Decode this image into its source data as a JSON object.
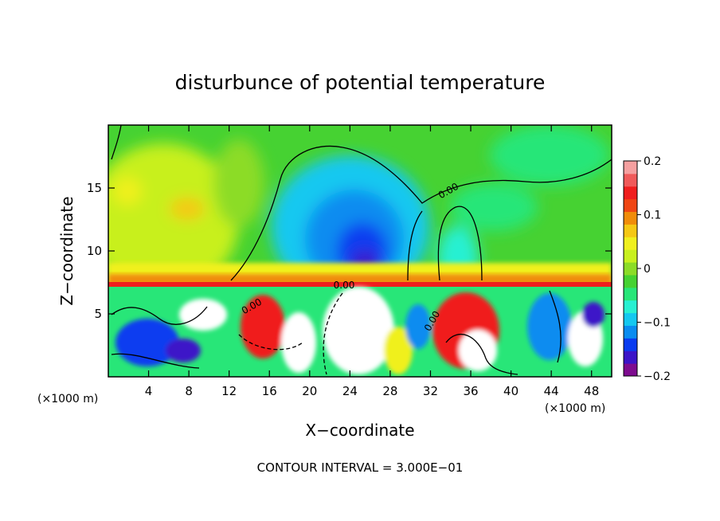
{
  "chart_data": {
    "type": "heatmap",
    "title": "disturbunce of potential temperature",
    "xlabel": "X−coordinate",
    "ylabel": "Z−coordinate",
    "x_unit": "(×1000 m)",
    "xlim": [
      0,
      50
    ],
    "ylim": [
      0,
      20
    ],
    "x_ticks": [
      4,
      8,
      12,
      16,
      20,
      24,
      28,
      32,
      36,
      40,
      44,
      48
    ],
    "y_ticks": [
      5,
      10,
      15
    ],
    "colorbar": {
      "range": [
        -0.2,
        0.2
      ],
      "tick_values": [
        0.2,
        0.1,
        0,
        -0.1,
        -0.2
      ],
      "tick_labels": [
        "0.2",
        "0.1",
        "0",
        "−0.1",
        "−0.2"
      ],
      "colors": [
        "#7e0c8f",
        "#3c14c8",
        "#0a3cf0",
        "#0a8cf0",
        "#14c8f0",
        "#28f0d2",
        "#28e678",
        "#46d232",
        "#8cdc28",
        "#c8f01e",
        "#f0f01e",
        "#f5c814",
        "#f08c0a",
        "#f04614",
        "#f01e1e",
        "#f05a5a",
        "#f5a0a0"
      ]
    },
    "contour_labels": [
      "0.00",
      "0.00",
      "0.00",
      "0.00"
    ],
    "footer": "CONTOUR INTERVAL = 3.000E−01"
  }
}
